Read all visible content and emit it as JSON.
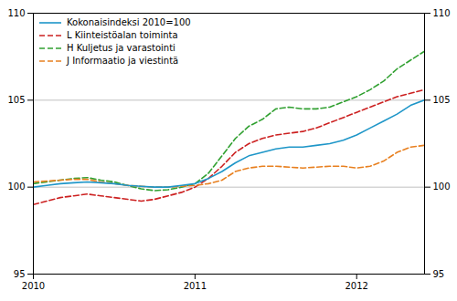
{
  "chart_data": {
    "type": "line",
    "x": [
      2010.0,
      2010.083,
      2010.167,
      2010.25,
      2010.333,
      2010.417,
      2010.5,
      2010.583,
      2010.667,
      2010.75,
      2010.833,
      2010.917,
      2011.0,
      2011.083,
      2011.167,
      2011.25,
      2011.333,
      2011.417,
      2011.5,
      2011.583,
      2011.667,
      2011.75,
      2011.833,
      2011.917,
      2012.0,
      2012.083,
      2012.167,
      2012.25,
      2012.333,
      2012.417
    ],
    "series": [
      {
        "name": "Kokonaisindeksi 2010=100",
        "color": "#1e96c8",
        "line_style": "solid",
        "values": [
          100.0,
          100.1,
          100.2,
          100.25,
          100.3,
          100.25,
          100.2,
          100.1,
          100.05,
          100.0,
          100.0,
          100.1,
          100.2,
          100.5,
          100.9,
          101.4,
          101.8,
          102.0,
          102.2,
          102.3,
          102.3,
          102.4,
          102.5,
          102.7,
          103.0,
          103.4,
          103.8,
          104.2,
          104.7,
          105.0
        ]
      },
      {
        "name": "L Kiinteistöalan toiminta",
        "color": "#cc2020",
        "line_style": "dashed",
        "values": [
          99.0,
          99.2,
          99.4,
          99.5,
          99.6,
          99.5,
          99.4,
          99.3,
          99.2,
          99.3,
          99.5,
          99.7,
          100.0,
          100.5,
          101.2,
          102.0,
          102.5,
          102.8,
          103.0,
          103.1,
          103.2,
          103.4,
          103.7,
          104.0,
          104.3,
          104.6,
          104.9,
          105.2,
          105.4,
          105.6
        ]
      },
      {
        "name": "H Kuljetus ja varastointi",
        "color": "#30a030",
        "line_style": "dashed",
        "values": [
          100.2,
          100.3,
          100.4,
          100.5,
          100.55,
          100.4,
          100.3,
          100.1,
          99.9,
          99.8,
          99.85,
          100.0,
          100.2,
          100.8,
          101.8,
          102.8,
          103.5,
          103.9,
          104.5,
          104.6,
          104.5,
          104.5,
          104.6,
          104.9,
          105.2,
          105.6,
          106.1,
          106.8,
          107.3,
          107.8
        ]
      },
      {
        "name": "J Informaatio ja viestintä",
        "color": "#e88020",
        "line_style": "dashed",
        "values": [
          100.3,
          100.35,
          100.4,
          100.45,
          100.45,
          100.3,
          100.2,
          100.1,
          100.05,
          100.0,
          100.0,
          100.05,
          100.1,
          100.2,
          100.4,
          100.9,
          101.1,
          101.2,
          101.2,
          101.15,
          101.1,
          101.15,
          101.2,
          101.2,
          101.1,
          101.2,
          101.5,
          102.0,
          102.3,
          102.4
        ]
      }
    ],
    "xlim": [
      2010.0,
      2012.42
    ],
    "xticks": [
      2010,
      2011,
      2012
    ],
    "ylim": [
      95,
      110
    ],
    "yticks": [
      95,
      100,
      105,
      110
    ],
    "y2lim": [
      95,
      110
    ],
    "y2ticks": [
      95,
      100,
      105,
      110
    ],
    "grid": true,
    "legend": "upper left"
  }
}
